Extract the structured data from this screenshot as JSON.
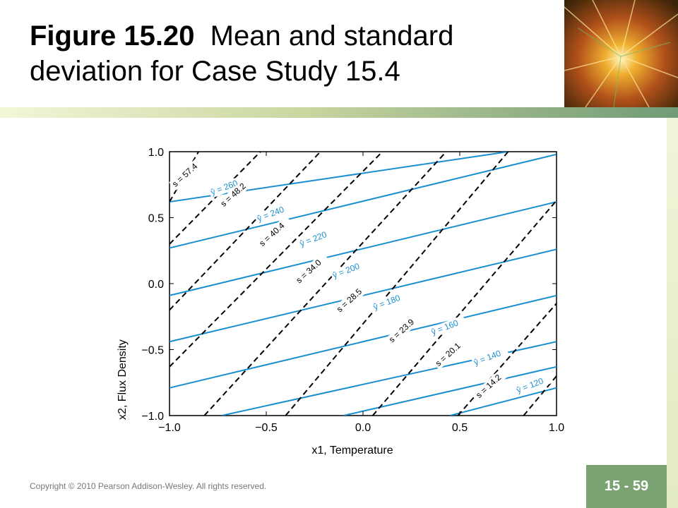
{
  "slide": {
    "title_bold": "Figure 15.20",
    "title_rest": "Mean and standard deviation for Case Study 15.4",
    "copyright": "Copyright © 2010 Pearson Addison-Wesley. All rights reserved.",
    "page_number": "15 - 59"
  },
  "colors": {
    "mean_contour": "#1a8fd0",
    "sd_contour": "#000000",
    "page_badge": "#7aa272"
  },
  "chart_data": {
    "type": "contour",
    "xlabel": "x1, Temperature",
    "ylabel": "x2, Flux Density",
    "xlim": [
      -1.0,
      1.0
    ],
    "ylim": [
      -1.0,
      1.0
    ],
    "xticks": [
      "−1.0",
      "−0.5",
      "0.0",
      "0.5",
      "1.0"
    ],
    "yticks": [
      "−1.0",
      "−0.5",
      "0.0",
      "0.5",
      "1.0"
    ],
    "mean_contours": [
      {
        "label": "ŷ = 260",
        "value": 260,
        "points": [
          [
            -1.0,
            0.62
          ],
          [
            0.75,
            1.0
          ]
        ]
      },
      {
        "label": "ŷ = 240",
        "value": 240,
        "points": [
          [
            -1.0,
            0.27
          ],
          [
            1.0,
            0.98
          ]
        ]
      },
      {
        "label": "ŷ = 220",
        "value": 220,
        "points": [
          [
            -1.0,
            -0.09
          ],
          [
            1.0,
            0.62
          ]
        ]
      },
      {
        "label": "ŷ = 200",
        "value": 200,
        "points": [
          [
            -1.0,
            -0.44
          ],
          [
            1.0,
            0.26
          ]
        ]
      },
      {
        "label": "ŷ = 180",
        "value": 180,
        "points": [
          [
            -1.0,
            -0.79
          ],
          [
            1.0,
            -0.09
          ]
        ]
      },
      {
        "label": "ŷ = 160",
        "value": 160,
        "points": [
          [
            -0.73,
            -1.0
          ],
          [
            1.0,
            -0.44
          ]
        ]
      },
      {
        "label": "ŷ = 140",
        "value": 140,
        "points": [
          [
            -0.1,
            -1.0
          ],
          [
            1.0,
            -0.63
          ]
        ]
      },
      {
        "label": "ŷ = 120",
        "value": 120,
        "points": [
          [
            0.45,
            -1.0
          ],
          [
            1.0,
            -0.79
          ]
        ]
      }
    ],
    "sd_contours": [
      {
        "label": "s = 57.4",
        "value": 57.4,
        "points": [
          [
            -1.0,
            0.62
          ],
          [
            -0.85,
            1.0
          ]
        ]
      },
      {
        "label": "s = 48.2",
        "value": 48.2,
        "points": [
          [
            -1.0,
            0.3
          ],
          [
            -0.53,
            1.0
          ]
        ]
      },
      {
        "label": "s = 40.4",
        "value": 40.4,
        "points": [
          [
            -1.0,
            -0.2
          ],
          [
            -0.22,
            1.0
          ]
        ]
      },
      {
        "label": "s = 34.0",
        "value": 34.0,
        "points": [
          [
            -1.0,
            -0.63
          ],
          [
            0.1,
            1.0
          ]
        ]
      },
      {
        "label": "s = 28.5",
        "value": 28.5,
        "points": [
          [
            -0.82,
            -1.0
          ],
          [
            0.43,
            1.0
          ]
        ]
      },
      {
        "label": "s = 23.9",
        "value": 23.9,
        "points": [
          [
            -0.4,
            -1.0
          ],
          [
            0.75,
            1.0
          ]
        ]
      },
      {
        "label": "s = 20.1",
        "value": 20.1,
        "points": [
          [
            0.05,
            -1.0
          ],
          [
            1.0,
            0.63
          ]
        ]
      },
      {
        "label": "s = 14.2",
        "value": 14.2,
        "points": [
          [
            0.49,
            -1.0
          ],
          [
            1.0,
            -0.15
          ]
        ]
      },
      {
        "label": "",
        "value": null,
        "points": [
          [
            0.83,
            -1.0
          ],
          [
            1.0,
            -0.7
          ]
        ]
      }
    ],
    "mean_labels": [
      {
        "text": "ŷ = 260",
        "x": -0.78,
        "y": 0.67
      },
      {
        "text": "ŷ = 240",
        "x": -0.54,
        "y": 0.47
      },
      {
        "text": "ŷ = 220",
        "x": -0.32,
        "y": 0.28
      },
      {
        "text": "ŷ = 200",
        "x": -0.15,
        "y": 0.04
      },
      {
        "text": "ŷ = 180",
        "x": 0.06,
        "y": -0.2
      },
      {
        "text": "ŷ = 160",
        "x": 0.36,
        "y": -0.39
      },
      {
        "text": "ŷ = 140",
        "x": 0.58,
        "y": -0.62
      },
      {
        "text": "ŷ = 120",
        "x": 0.8,
        "y": -0.83
      }
    ],
    "sd_labels": [
      {
        "text": "s = 57.4",
        "x": -0.97,
        "y": 0.73
      },
      {
        "text": "s = 48.2",
        "x": -0.72,
        "y": 0.58
      },
      {
        "text": "s = 40.4",
        "x": -0.52,
        "y": 0.28
      },
      {
        "text": "s = 34.0",
        "x": -0.33,
        "y": 0.0
      },
      {
        "text": "s = 28.5",
        "x": -0.12,
        "y": -0.22
      },
      {
        "text": "s = 23.9",
        "x": 0.15,
        "y": -0.45
      },
      {
        "text": "s = 20.1",
        "x": 0.39,
        "y": -0.63
      },
      {
        "text": "s = 14.2",
        "x": 0.6,
        "y": -0.87
      }
    ]
  }
}
